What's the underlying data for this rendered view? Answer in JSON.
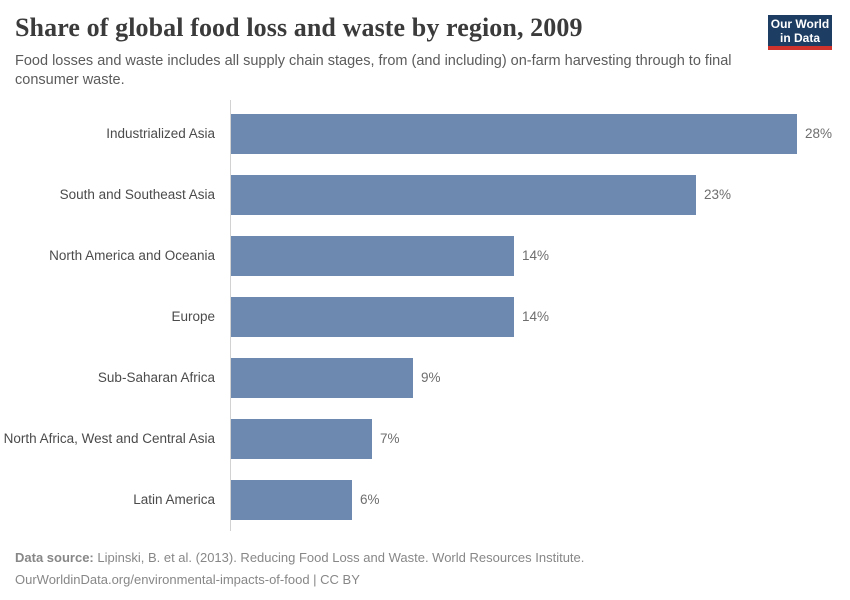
{
  "header": {
    "title": "Share of global food loss and waste by region, 2009",
    "subtitle": "Food losses and waste includes all supply chain stages, from (and including) on-farm harvesting through to final consumer waste.",
    "logo": {
      "line1": "Our World",
      "line2": "in Data",
      "background_color": "#1d3d63",
      "accent_color": "#d0332c"
    }
  },
  "chart_data": {
    "type": "bar",
    "orientation": "horizontal",
    "title": "Share of global food loss and waste by region, 2009",
    "categories": [
      "Industrialized Asia",
      "South and Southeast Asia",
      "North America and Oceania",
      "Europe",
      "Sub-Saharan Africa",
      "North Africa, West and Central Asia",
      "Latin America"
    ],
    "values": [
      28,
      23,
      14,
      14,
      9,
      7,
      6
    ],
    "value_labels": [
      "28%",
      "23%",
      "14%",
      "14%",
      "9%",
      "7%",
      "6%"
    ],
    "unit": "%",
    "xlim": [
      0,
      28
    ],
    "bar_color": "#6d89af",
    "axis_line_color": "#d2d2d2",
    "grid": false,
    "legend": false
  },
  "footer": {
    "source_label": "Data source:",
    "source_text": " Lipinski, B. et al. (2013). Reducing Food Loss and Waste. World Resources Institute.",
    "attribution": "OurWorldinData.org/environmental-impacts-of-food | CC BY"
  }
}
